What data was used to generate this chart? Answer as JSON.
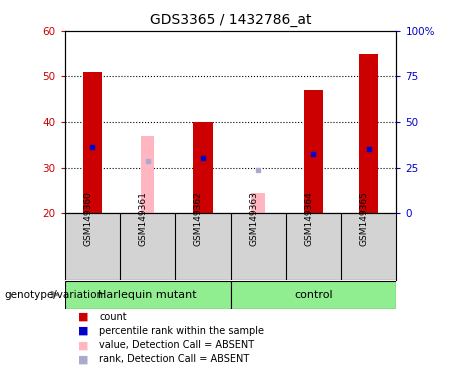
{
  "title": "GDS3365 / 1432786_at",
  "samples": [
    "GSM149360",
    "GSM149361",
    "GSM149362",
    "GSM149363",
    "GSM149364",
    "GSM149365"
  ],
  "bar_bottom": 20,
  "ylim_left": [
    20,
    60
  ],
  "ylim_right": [
    0,
    100
  ],
  "yticks_left": [
    20,
    30,
    40,
    50,
    60
  ],
  "yticks_right": [
    0,
    25,
    50,
    75,
    100
  ],
  "yticklabels_right": [
    "0",
    "25",
    "50",
    "75",
    "100%"
  ],
  "red_bar_top": [
    51,
    20,
    40,
    20,
    47,
    55
  ],
  "pink_bar_top": [
    20,
    37,
    20,
    24.5,
    20,
    20
  ],
  "blue_dot_y": [
    34.5,
    20,
    32,
    20,
    33,
    34
  ],
  "lavender_dot_y": [
    20,
    31.5,
    20,
    29.5,
    20,
    20
  ],
  "red_color": "#CC0000",
  "pink_color": "#FFB6C1",
  "blue_color": "#0000CC",
  "lavender_color": "#AAAACC",
  "plot_bg": "#FFFFFF",
  "sample_bg": "#D3D3D3",
  "group_bg": "#90EE90",
  "genotype_label": "genotype/variation",
  "group_boundaries": [
    0,
    3,
    6
  ],
  "group_names": [
    "Harlequin mutant",
    "control"
  ],
  "legend_items": [
    {
      "label": "count",
      "color": "#CC0000"
    },
    {
      "label": "percentile rank within the sample",
      "color": "#0000CC"
    },
    {
      "label": "value, Detection Call = ABSENT",
      "color": "#FFB6C1"
    },
    {
      "label": "rank, Detection Call = ABSENT",
      "color": "#AAAACC"
    }
  ]
}
